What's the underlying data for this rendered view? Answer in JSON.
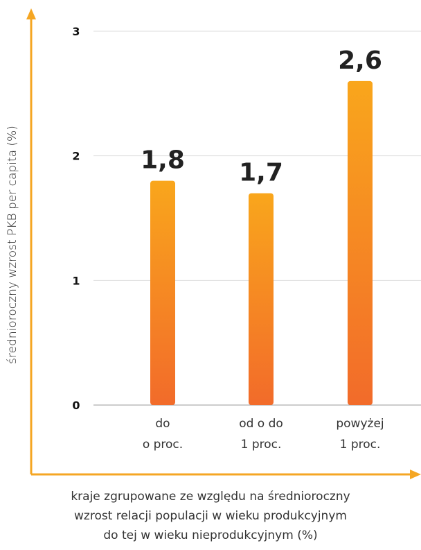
{
  "chart_data": {
    "type": "bar",
    "categories": [
      [
        "do",
        "o proc."
      ],
      [
        "od o do",
        "1 proc."
      ],
      [
        "powyżej",
        "1 proc."
      ]
    ],
    "values": [
      1.8,
      1.7,
      2.6
    ],
    "value_labels": [
      "1,8",
      "1,7",
      "2,6"
    ],
    "yticks": [
      0,
      1,
      2,
      3
    ],
    "ylim": [
      0,
      3
    ],
    "ylabel": "średnioroczny wzrost PKB per capita (%)",
    "xlabel": [
      "kraje zgrupowane ze względu na średnioroczny",
      "wzrost relacji populacji w wieku produkcyjnym",
      "do tej w wieku nieprodukcyjnym (%)"
    ],
    "grid": true,
    "colors": {
      "bar_top": "#f9a61c",
      "bar_bottom": "#f26b2a",
      "axis": "#f5a623",
      "grid": "#dddddd"
    }
  }
}
